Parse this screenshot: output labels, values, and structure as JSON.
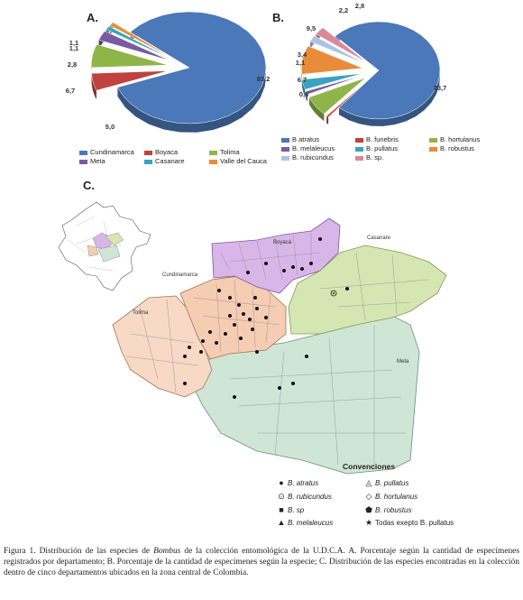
{
  "panels": {
    "a": "A.",
    "b": "B.",
    "c": "C."
  },
  "chart_data": [
    {
      "type": "pie",
      "panel": "A",
      "categories": [
        "Cundinamarca",
        "Boyaca",
        "Tolima",
        "Meta",
        "Casanare",
        "Valle del Cauca"
      ],
      "values": [
        83.2,
        5.0,
        6.7,
        2.8,
        1.1,
        1.1
      ],
      "value_labels": [
        "83,2",
        "5,0",
        "6,7",
        "2,8",
        "1,1",
        "1,1"
      ],
      "colors": [
        "#4a78b8",
        "#c0413d",
        "#8fb549",
        "#7b5aa0",
        "#3aa3bf",
        "#e88c3a"
      ]
    },
    {
      "type": "pie",
      "panel": "B",
      "categories": [
        "B atratus",
        "B. funebris",
        "B. hortulanus",
        "B. melaleucus",
        "B. pullatus",
        "B. robustus",
        "B. rubicundus",
        "B. sp."
      ],
      "values": [
        73.7,
        0.6,
        6.7,
        1.1,
        3.4,
        9.5,
        2.2,
        2.8
      ],
      "value_labels": [
        "73,7",
        "0,6",
        "6,7",
        "1,1",
        "3,4",
        "9,5",
        "2,2",
        "2,8"
      ],
      "colors": [
        "#4a78b8",
        "#c0413d",
        "#8fb549",
        "#7b5aa0",
        "#3aa3bf",
        "#e88c3a",
        "#a9c4e4",
        "#d9899a"
      ]
    }
  ],
  "map": {
    "labels": {
      "boyaca": "Boyacá",
      "casanare": "Casanare",
      "cundinamarca": "Cundinamarca",
      "tolima": "Tolima",
      "meta": "Meta"
    },
    "colors": {
      "boyaca": "#d9b6e8",
      "casanare": "#d6e6b3",
      "cundinamarca": "#f4cdb3",
      "tolima": "#f7d9c6",
      "meta": "#cfe6d6"
    }
  },
  "conventions": {
    "title": "Convenciones",
    "items": [
      {
        "symbol": "●",
        "label": "B. atratus"
      },
      {
        "symbol": "⊙",
        "label": "B. rubicundus"
      },
      {
        "symbol": "■",
        "label": "B. sp"
      },
      {
        "symbol": "▲",
        "label": "B. melaleucus"
      },
      {
        "symbol": "◬",
        "label": "B. pullatus"
      },
      {
        "symbol": "◇",
        "label": "B. hortulanus"
      },
      {
        "symbol": "⬟",
        "label": "B. robustus"
      },
      {
        "symbol": "★",
        "label": "Todas exepto B. pullatus"
      }
    ]
  },
  "caption": {
    "prefix": "Figura 1. Distribución de las especies de ",
    "genus": "Bombus",
    "text": " de la colección entomológica de la U.D.C.A. A. Porcentaje según la cantidad de especímenes registrados por departamento; B. Porcentaje de la cantidad de especímenes según la especie; C. Distribución de las especies encontradas en la colección dentro de cinco departamentos ubicados en la zona central de Colombia."
  }
}
